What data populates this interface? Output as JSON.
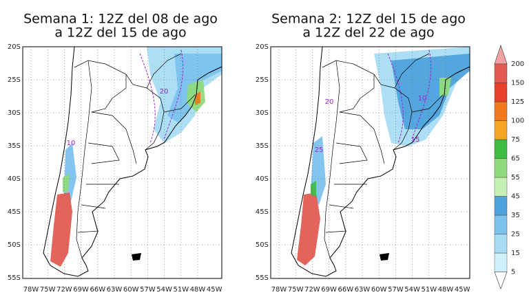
{
  "panels": [
    {
      "title": [
        "Semana 1: 12Z del 08 de ago",
        "a 12Z del 15 de ago"
      ],
      "contour_labels": [
        "20",
        "10"
      ]
    },
    {
      "title": [
        "Semana 2: 12Z del 15 de ago",
        "a 12Z del 22 de ago"
      ],
      "contour_labels": [
        "20",
        "10",
        "25",
        "15"
      ]
    }
  ],
  "lat_labels": [
    "20S",
    "25S",
    "30S",
    "35S",
    "40S",
    "45S",
    "50S",
    "55S"
  ],
  "lon_labels": [
    "78W",
    "75W",
    "72W",
    "69W",
    "66W",
    "63W",
    "60W",
    "57W",
    "54W",
    "51W",
    "48W",
    "45W"
  ],
  "colorbar": {
    "levels": [
      5,
      15,
      25,
      35,
      45,
      55,
      65,
      75,
      100,
      125,
      150,
      200
    ],
    "colors": [
      "#ffffff",
      "#cdf0fb",
      "#a8dcf6",
      "#7cc2ee",
      "#4fa3dc",
      "#c6f0b4",
      "#8fdb7b",
      "#3fbd43",
      "#f5a623",
      "#f27a1e",
      "#e8402a",
      "#e25c52",
      "#f3a3a3"
    ]
  }
}
